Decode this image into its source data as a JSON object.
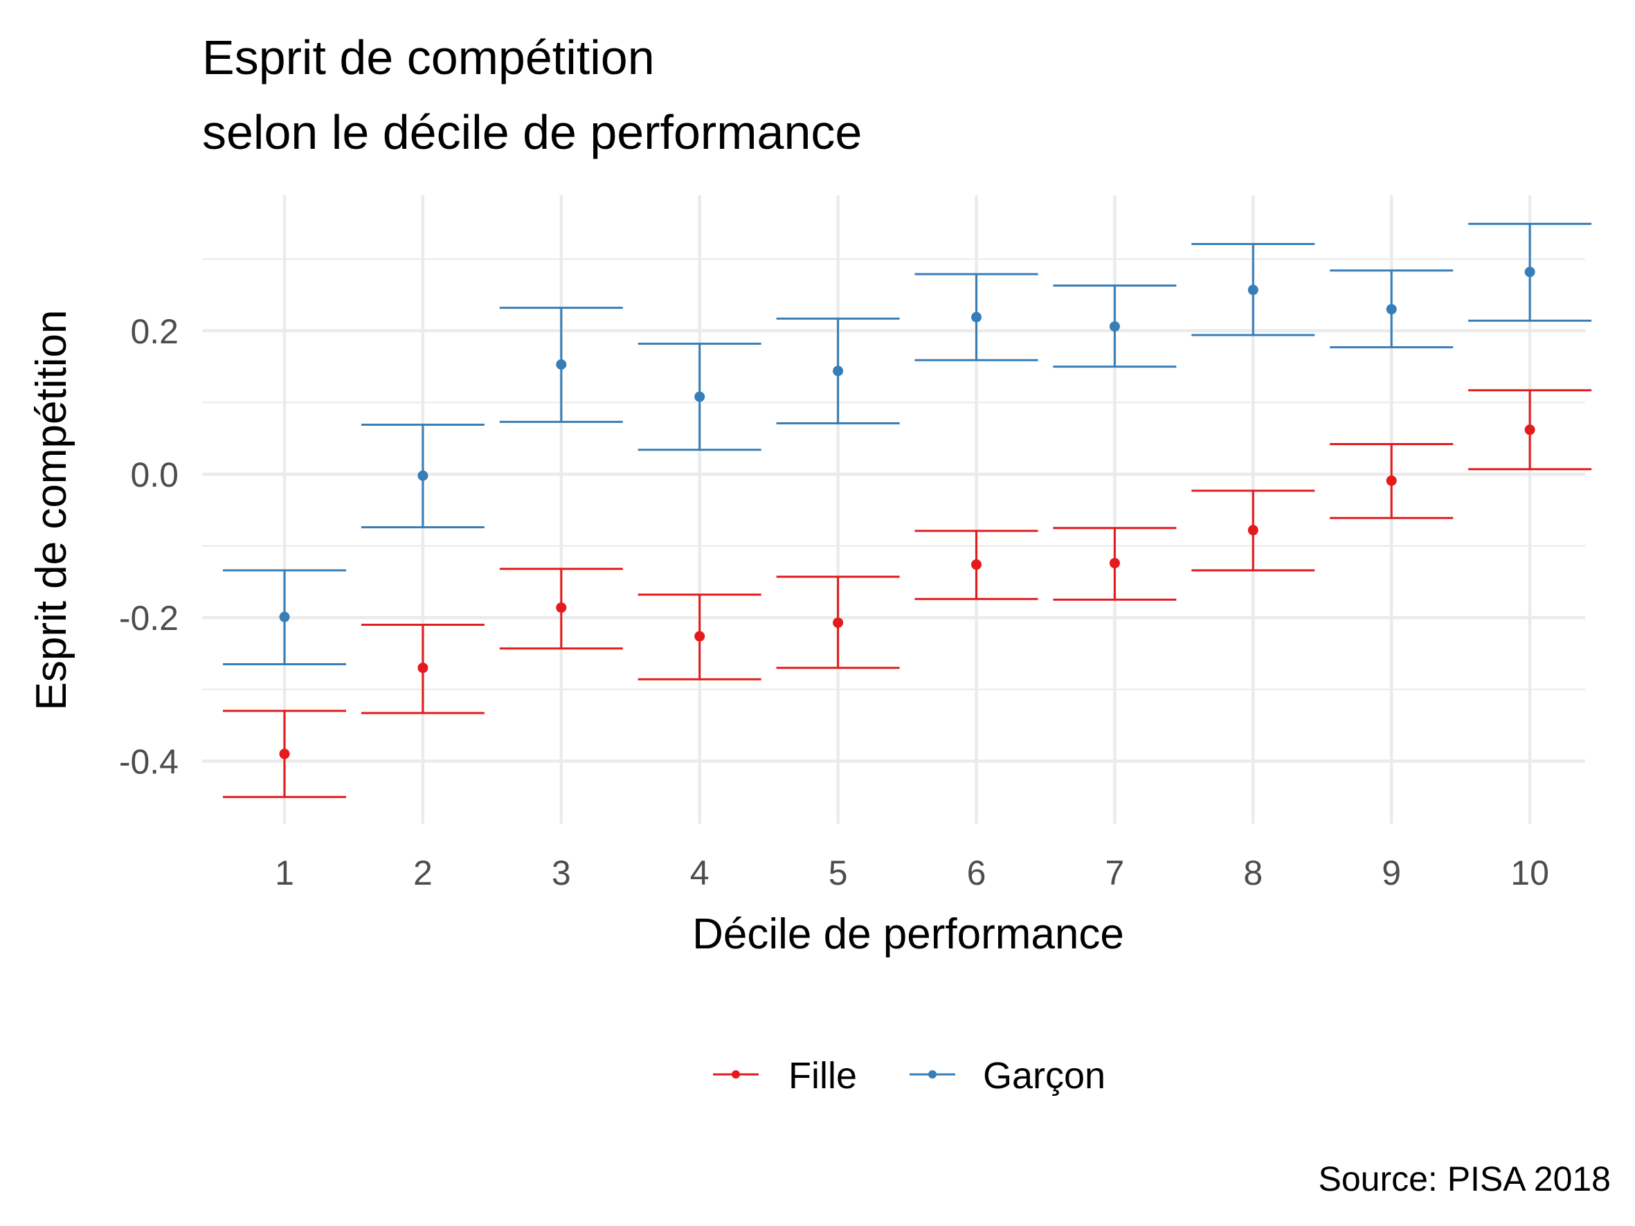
{
  "chart_data": {
    "type": "errorbar",
    "title_lines": [
      "Esprit de compétition",
      "selon le décile de performance"
    ],
    "xlabel": "Décile de performance",
    "ylabel": "Esprit de compétition",
    "caption": "Source: PISA 2018",
    "categories": [
      "1",
      "2",
      "3",
      "4",
      "5",
      "6",
      "7",
      "8",
      "9",
      "10"
    ],
    "yticks": [
      -0.4,
      -0.2,
      0.0,
      0.2
    ],
    "ytick_labels": [
      "-0.4",
      "-0.2",
      "0.0",
      "0.2"
    ],
    "ylim": [
      -0.49,
      0.39
    ],
    "grid": true,
    "legend_position": "bottom",
    "series": [
      {
        "name": "Fille",
        "color": "#e41a1c",
        "values": [
          -0.39,
          -0.27,
          -0.186,
          -0.226,
          -0.207,
          -0.126,
          -0.124,
          -0.078,
          -0.009,
          0.062
        ],
        "lower": [
          -0.45,
          -0.333,
          -0.243,
          -0.286,
          -0.27,
          -0.174,
          -0.175,
          -0.134,
          -0.061,
          0.007
        ],
        "upper": [
          -0.33,
          -0.21,
          -0.132,
          -0.168,
          -0.143,
          -0.079,
          -0.075,
          -0.023,
          0.042,
          0.117
        ]
      },
      {
        "name": "Garçon",
        "color": "#377eb8",
        "values": [
          -0.199,
          -0.002,
          0.153,
          0.108,
          0.144,
          0.219,
          0.206,
          0.257,
          0.23,
          0.282
        ],
        "lower": [
          -0.265,
          -0.074,
          0.073,
          0.034,
          0.071,
          0.159,
          0.15,
          0.194,
          0.177,
          0.214
        ],
        "upper": [
          -0.134,
          0.069,
          0.232,
          0.182,
          0.217,
          0.279,
          0.263,
          0.321,
          0.284,
          0.349
        ]
      }
    ]
  }
}
